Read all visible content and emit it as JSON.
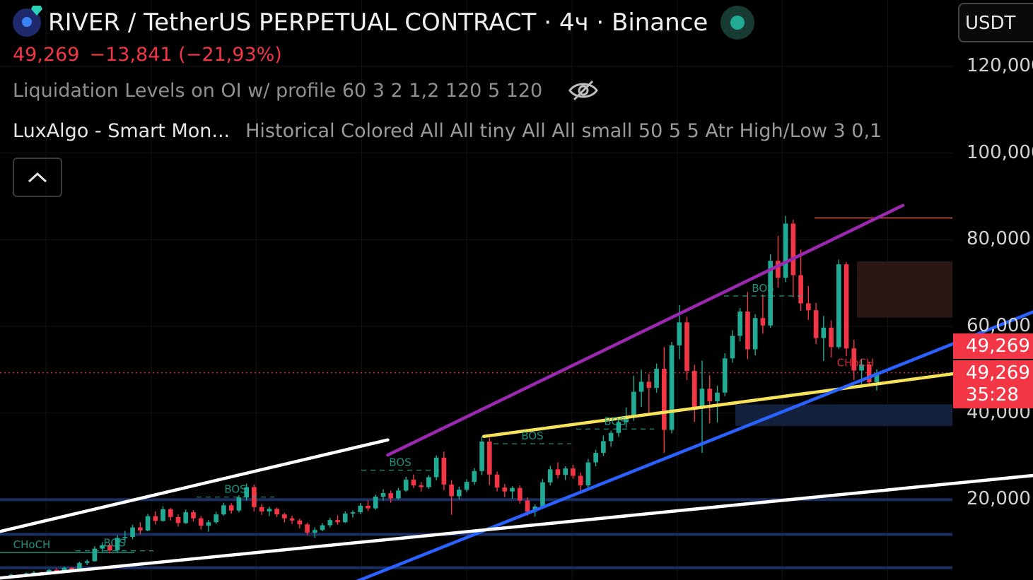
{
  "header": {
    "symbol_title": "RIVER / TetherUS PERPETUAL CONTRACT · 4ч · Binance",
    "last_price": "49,269",
    "change": "−13,841 (−21,93%)",
    "indicator_1": "Liquidation Levels on OI w/ profile 60 3 2 1,2 120 5 120",
    "indicator_2_name": "LuxAlgo - Smart Mon...",
    "indicator_2_params": "Historical Colored All All tiny All All small 50 5 5 Atr High/Low 3 0,1",
    "status_color": "#22ab94"
  },
  "toolbar": {
    "currency": "USDT",
    "collapse_icon": "chevron-up-icon",
    "visibility_icon": "eye-off-icon"
  },
  "price_scale": {
    "last_price_label": "49,269",
    "close_price_label": "49,269",
    "countdown": "35:28"
  },
  "colors": {
    "up": "#22ab94",
    "down": "#f23645",
    "channel": "#9c27b0",
    "support_blue": "#2962ff",
    "yellow_trend": "#f7e35a",
    "white_trend": "#ffffff",
    "label_color": "#8c8c8c"
  },
  "chart_data": {
    "type": "candlestick",
    "title": "RIVER / TetherUS PERPETUAL CONTRACT · 4ч · Binance",
    "ylim": [
      0,
      128000
    ],
    "y_ticks": [
      {
        "value": 120000,
        "label": "120,000"
      },
      {
        "value": 100000,
        "label": "100,000"
      },
      {
        "value": 80000,
        "label": "80,000"
      },
      {
        "value": 60000,
        "label": "60,000"
      },
      {
        "value": 40000,
        "label": "40,000"
      },
      {
        "value": 20000,
        "label": "20,000"
      }
    ],
    "grid": true,
    "current_price": 49269,
    "ohlc": [
      [
        2300,
        2400,
        1800,
        2100
      ],
      [
        2100,
        2900,
        2000,
        2700
      ],
      [
        2700,
        2800,
        2000,
        2300
      ],
      [
        2300,
        3200,
        2200,
        3000
      ],
      [
        3000,
        3600,
        2700,
        3200
      ],
      [
        3200,
        3400,
        2600,
        2800
      ],
      [
        2800,
        4000,
        2700,
        3800
      ],
      [
        3800,
        4200,
        3100,
        3400
      ],
      [
        3400,
        4600,
        3200,
        4300
      ],
      [
        4300,
        4400,
        3600,
        3900
      ],
      [
        3900,
        5700,
        3800,
        5400
      ],
      [
        5400,
        6200,
        4900,
        5800
      ],
      [
        5800,
        9300,
        5700,
        8700
      ],
      [
        8700,
        10200,
        7800,
        9500
      ],
      [
        9500,
        9900,
        7600,
        8300
      ],
      [
        8300,
        11800,
        8000,
        11200
      ],
      [
        11200,
        12800,
        10100,
        11400
      ],
      [
        11400,
        14200,
        10900,
        13600
      ],
      [
        13600,
        14800,
        12000,
        12900
      ],
      [
        12900,
        16700,
        12700,
        16200
      ],
      [
        16200,
        17300,
        14300,
        15100
      ],
      [
        15100,
        18500,
        14900,
        17800
      ],
      [
        17800,
        18100,
        15200,
        16000
      ],
      [
        16000,
        16600,
        13800,
        14600
      ],
      [
        14600,
        17700,
        14400,
        17100
      ],
      [
        17100,
        17600,
        15000,
        15700
      ],
      [
        15700,
        16200,
        13100,
        14000
      ],
      [
        14000,
        15300,
        12600,
        14800
      ],
      [
        14800,
        17200,
        14400,
        16600
      ],
      [
        16600,
        19300,
        16300,
        18700
      ],
      [
        18700,
        19200,
        16800,
        17500
      ],
      [
        17500,
        21000,
        17100,
        20500
      ],
      [
        20500,
        23700,
        19800,
        22900
      ],
      [
        22900,
        23500,
        17300,
        18300
      ],
      [
        18300,
        19000,
        16500,
        17300
      ],
      [
        17300,
        18400,
        16200,
        17900
      ],
      [
        17900,
        18200,
        16000,
        16600
      ],
      [
        16600,
        17000,
        14800,
        15700
      ],
      [
        15700,
        16300,
        14400,
        15200
      ],
      [
        15200,
        15600,
        13400,
        14300
      ],
      [
        14300,
        14700,
        11800,
        12400
      ],
      [
        12400,
        13600,
        11200,
        13000
      ],
      [
        13000,
        14600,
        12700,
        14100
      ],
      [
        14100,
        15800,
        13600,
        15300
      ],
      [
        15300,
        16400,
        14200,
        14800
      ],
      [
        14800,
        17300,
        14600,
        16800
      ],
      [
        16800,
        17500,
        15900,
        17100
      ],
      [
        17100,
        19200,
        16700,
        18600
      ],
      [
        18600,
        19900,
        17400,
        18000
      ],
      [
        18000,
        21200,
        17700,
        20700
      ],
      [
        20700,
        22400,
        19800,
        21500
      ],
      [
        21500,
        22100,
        19300,
        20300
      ],
      [
        20300,
        22700,
        20000,
        22100
      ],
      [
        22100,
        25300,
        21800,
        24600
      ],
      [
        24600,
        25800,
        22700,
        23300
      ],
      [
        23300,
        24100,
        21900,
        22900
      ],
      [
        22900,
        25700,
        22500,
        25200
      ],
      [
        25200,
        30200,
        24500,
        29700
      ],
      [
        29700,
        31100,
        22200,
        23500
      ],
      [
        23500,
        24500,
        16500,
        20800
      ],
      [
        20800,
        23000,
        20100,
        22300
      ],
      [
        22300,
        24700,
        21800,
        24100
      ],
      [
        24100,
        27300,
        23400,
        26600
      ],
      [
        26600,
        34600,
        25700,
        33400
      ],
      [
        33400,
        34300,
        23400,
        25800
      ],
      [
        25800,
        26500,
        21900,
        22800
      ],
      [
        22800,
        23600,
        20600,
        21900
      ],
      [
        21900,
        23100,
        20200,
        22700
      ],
      [
        22700,
        23300,
        19100,
        19800
      ],
      [
        19800,
        20500,
        16300,
        17200
      ],
      [
        17200,
        18900,
        16100,
        18400
      ],
      [
        18400,
        24800,
        18000,
        24000
      ],
      [
        24000,
        27800,
        23300,
        27000
      ],
      [
        27000,
        28600,
        24900,
        25700
      ],
      [
        25700,
        27700,
        24500,
        27200
      ],
      [
        27200,
        28100,
        24800,
        25500
      ],
      [
        25500,
        26300,
        21900,
        23300
      ],
      [
        23300,
        29400,
        22600,
        28600
      ],
      [
        28600,
        31500,
        27700,
        30800
      ],
      [
        30800,
        34800,
        30100,
        33500
      ],
      [
        33500,
        35900,
        32200,
        35400
      ],
      [
        35400,
        38700,
        34500,
        37900
      ],
      [
        37900,
        41300,
        36600,
        39000
      ],
      [
        39000,
        48600,
        38200,
        44900
      ],
      [
        44900,
        50000,
        41400,
        47200
      ],
      [
        47200,
        49000,
        39800,
        45800
      ],
      [
        45800,
        51400,
        44700,
        50200
      ],
      [
        50200,
        55200,
        30800,
        36100
      ],
      [
        36100,
        56400,
        35300,
        55600
      ],
      [
        55600,
        64900,
        52400,
        60900
      ],
      [
        60900,
        62200,
        47600,
        49700
      ],
      [
        49700,
        51100,
        37900,
        41300
      ],
      [
        41300,
        52100,
        30800,
        45600
      ],
      [
        45600,
        48700,
        37600,
        42700
      ],
      [
        42700,
        46300,
        37800,
        44700
      ],
      [
        44700,
        53800,
        43900,
        52600
      ],
      [
        52600,
        59100,
        51600,
        57800
      ],
      [
        57800,
        64200,
        56500,
        63400
      ],
      [
        63400,
        67900,
        52400,
        54700
      ],
      [
        54700,
        62800,
        53300,
        61900
      ],
      [
        61900,
        67300,
        58300,
        60200
      ],
      [
        60200,
        76600,
        59700,
        75100
      ],
      [
        75100,
        80900,
        68900,
        71200
      ],
      [
        71200,
        85500,
        70200,
        83700
      ],
      [
        83700,
        84600,
        66700,
        71800
      ],
      [
        71800,
        77700,
        63600,
        65300
      ],
      [
        65300,
        69300,
        61500,
        63700
      ],
      [
        63700,
        65400,
        55900,
        57300
      ],
      [
        57300,
        62400,
        52000,
        59700
      ],
      [
        59700,
        61400,
        52800,
        55200
      ],
      [
        55200,
        75400,
        54800,
        74300
      ],
      [
        74300,
        74800,
        53100,
        54900
      ],
      [
        54900,
        56900,
        47600,
        49800
      ],
      [
        49800,
        52500,
        46700,
        51200
      ],
      [
        51200,
        51800,
        46100,
        47100
      ],
      [
        47100,
        50100,
        45200,
        49269
      ]
    ],
    "annotations": [
      {
        "text": "CHoCH",
        "price": 7800
      },
      {
        "text": "BOS",
        "price": 8200
      },
      {
        "text": "BOS",
        "price": 20600
      },
      {
        "text": "BOS",
        "price": 26800
      },
      {
        "text": "BOS",
        "price": 32900
      },
      {
        "text": "BOS",
        "price": 36300
      },
      {
        "text": "BOS",
        "price": 67000
      },
      {
        "text": "CHoCH",
        "price": 49800
      }
    ],
    "zones": [
      {
        "name": "supply",
        "top": 75000,
        "bottom": 62000,
        "color": "#2b1616"
      },
      {
        "name": "demand",
        "top": 42000,
        "bottom": 37000,
        "color": "#14213d"
      }
    ],
    "horizontal_levels": [
      85000,
      20000,
      12000,
      4300
    ],
    "trendlines": [
      {
        "name": "purple-channel",
        "from": [
          0.44,
          30300
        ],
        "to": [
          1.03,
          87900
        ]
      },
      {
        "name": "yellow-trend",
        "from": [
          0.55,
          34600
        ],
        "to": [
          1.16,
          51000
        ]
      },
      {
        "name": "blue-support",
        "from": [
          0.39,
          0
        ],
        "to": [
          1.2,
          65000
        ]
      },
      {
        "name": "white-upper",
        "from": [
          -0.06,
          10000
        ],
        "to": [
          0.44,
          33800
        ]
      },
      {
        "name": "white-lower",
        "from": [
          -0.1,
          0
        ],
        "to": [
          1.2,
          26000
        ]
      }
    ]
  }
}
